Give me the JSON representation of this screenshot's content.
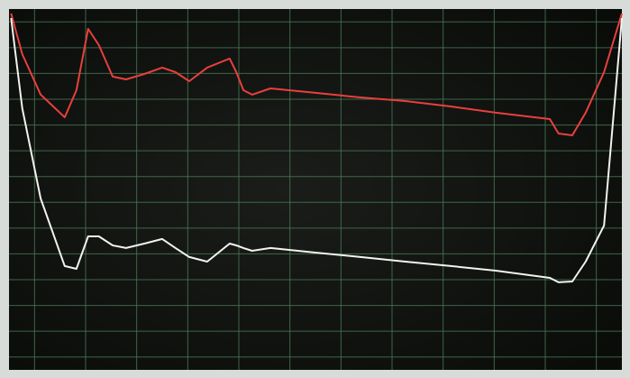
{
  "chart_data": {
    "type": "line",
    "x": [
      0.04,
      0.26,
      0.62,
      1.09,
      1.32,
      1.55,
      1.76,
      2.03,
      2.29,
      2.65,
      3.0,
      3.26,
      3.53,
      3.88,
      4.32,
      4.45,
      4.59,
      4.76,
      5.12,
      6.0,
      6.88,
      7.76,
      8.65,
      9.53,
      10.59,
      10.76,
      11.03,
      11.29,
      11.65,
      12.0
    ],
    "series": [
      {
        "color": "#e8403c",
        "values": [
          13.83,
          12.25,
          10.68,
          9.8,
          10.85,
          13.23,
          12.6,
          11.38,
          11.27,
          11.48,
          11.73,
          11.55,
          11.2,
          11.73,
          12.08,
          11.55,
          10.85,
          10.68,
          10.92,
          10.75,
          10.57,
          10.43,
          10.22,
          9.98,
          9.73,
          9.17,
          9.1,
          9.98,
          11.55,
          13.83
        ]
      },
      {
        "color": "#f2f2ee",
        "values": [
          13.65,
          10.15,
          6.65,
          4.03,
          3.92,
          5.18,
          5.18,
          4.83,
          4.73,
          4.9,
          5.08,
          4.73,
          4.38,
          4.2,
          4.9,
          4.83,
          4.73,
          4.62,
          4.73,
          4.55,
          4.38,
          4.2,
          4.03,
          3.85,
          3.57,
          3.4,
          3.43,
          4.2,
          5.6,
          13.65
        ]
      }
    ],
    "xlim": [
      0,
      12
    ],
    "ylim": [
      0,
      14
    ],
    "xticks": [
      0.5,
      1.5,
      2.5,
      3.5,
      4.5,
      5.5,
      6.5,
      7.5,
      8.5,
      9.5,
      10.5,
      11.5
    ],
    "yticks": [
      0.5,
      1.5,
      2.5,
      3.5,
      4.5,
      5.5,
      6.5,
      7.5,
      8.5,
      9.5,
      10.5,
      11.5,
      12.5,
      13.5
    ],
    "grid": true
  }
}
